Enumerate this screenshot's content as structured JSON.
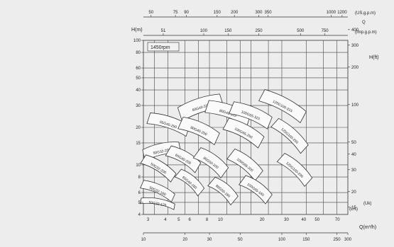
{
  "chart_data": {
    "type": "line",
    "title": "",
    "speed_label": "1450rpm",
    "left_axis": {
      "label": "H(m)",
      "scale": "log",
      "ticks": [
        "100",
        "80",
        "60",
        "50",
        "40",
        "30",
        "20",
        "15",
        "10",
        "8",
        "6",
        "5",
        "4"
      ],
      "range": [
        4,
        100
      ]
    },
    "right_axis_feet": {
      "label": "H(ft)",
      "ticks": [
        "400",
        "300",
        "200",
        "100",
        "50",
        "40",
        "30",
        "20",
        "15"
      ],
      "range": [
        13,
        330
      ]
    },
    "right_axis_note": "(Uk)",
    "top_axis_usgpm": {
      "unit": "(US.g.p.m)",
      "ticks": [
        "50",
        "75",
        "90",
        "150",
        "200",
        "300",
        "350",
        "1000",
        "1200"
      ]
    },
    "top_axis_impgpm": {
      "unit_q": "Q",
      "unit": "(Imp.g.p.m)",
      "ticks": [
        "51",
        "100",
        "150",
        "250",
        "500",
        "750"
      ]
    },
    "bottom_axis_m3h": {
      "label": "Q(m³/h)",
      "ticks": [
        "10",
        "20",
        "30",
        "50",
        "100",
        "150",
        "250",
        "300"
      ],
      "range": [
        10,
        300
      ]
    },
    "bottom_axis_ls": {
      "label": "(L/s)",
      "ticks": [
        "3",
        "4",
        "5",
        "6",
        "8",
        "10",
        "20",
        "30",
        "40",
        "50",
        "70"
      ],
      "range": [
        2.8,
        83
      ]
    },
    "series": [
      {
        "name": "80G40-315"
      },
      {
        "name": "80G40-315"
      },
      {
        "name": "100G65-315"
      },
      {
        "name": "125G100-315"
      },
      {
        "name": "65G40-250"
      },
      {
        "name": "80G40-250"
      },
      {
        "name": "100G65-250"
      },
      {
        "name": "125G100-250"
      },
      {
        "name": "50G32-200"
      },
      {
        "name": "65G40-200"
      },
      {
        "name": "80G50-200"
      },
      {
        "name": "100G65-200"
      },
      {
        "name": "125G100-200"
      },
      {
        "name": "50G32-200"
      },
      {
        "name": "65G40-160"
      },
      {
        "name": "80G50-160"
      },
      {
        "name": "100G65-160"
      },
      {
        "name": "50G32-160"
      },
      {
        "name": "50G32-125"
      }
    ]
  }
}
